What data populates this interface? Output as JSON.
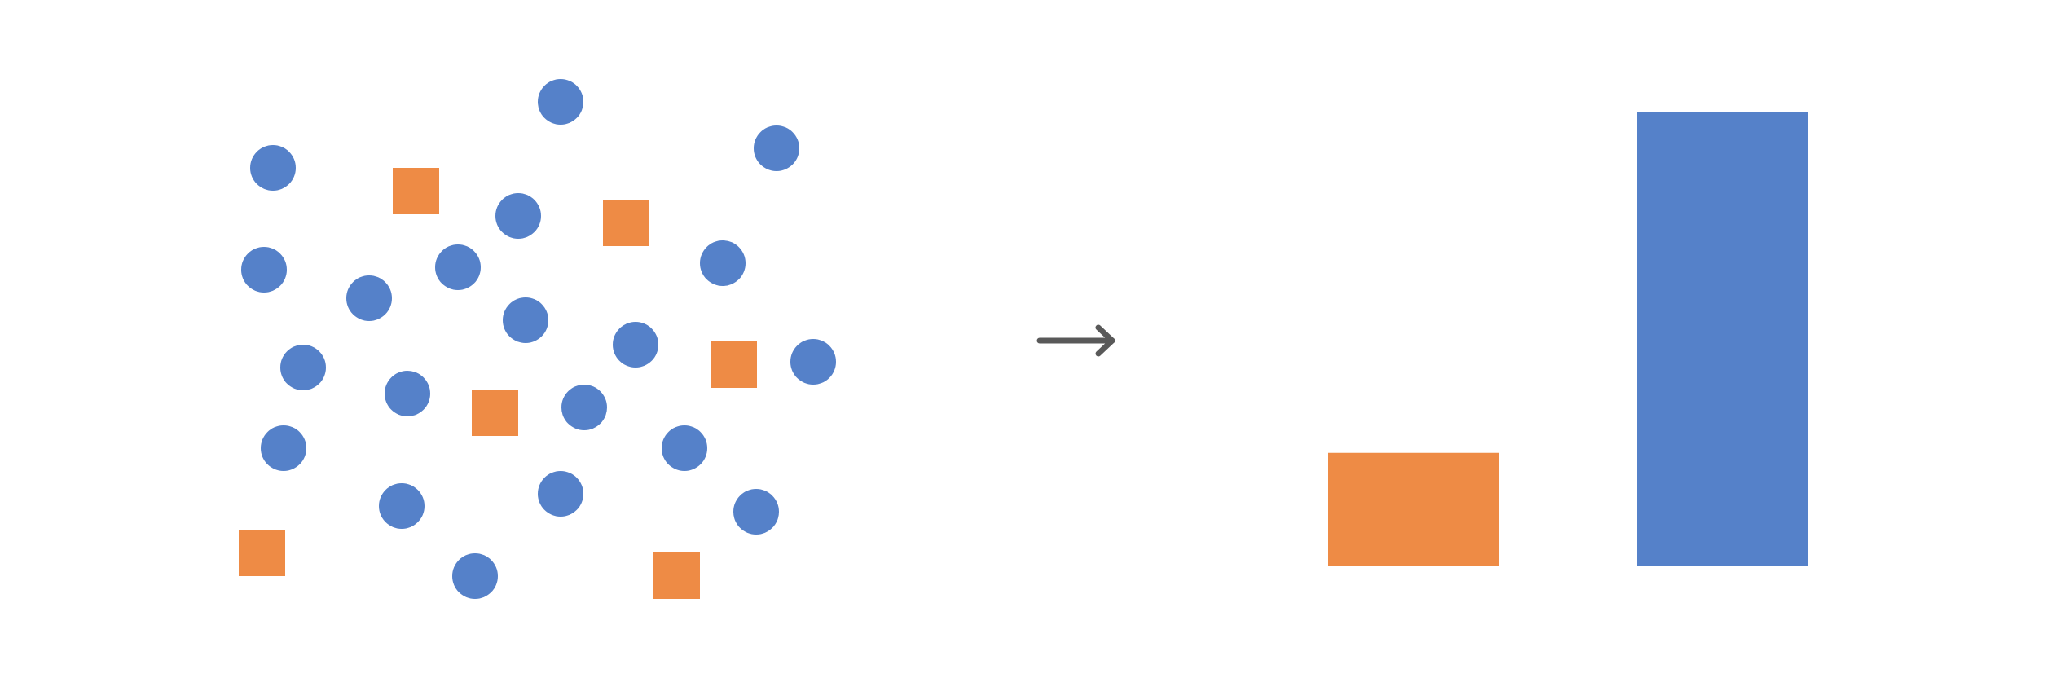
{
  "colors": {
    "background": "#ffffff",
    "circle": "#5581c9",
    "square": "#ee8b45",
    "arrow": "#595959"
  },
  "icons": {
    "arrow": "right-arrow-icon"
  },
  "chart_data": {
    "type": "bar",
    "categories": [
      "",
      ""
    ],
    "series": [
      {
        "values": [
          0.25,
          1.0
        ]
      }
    ],
    "bar_colors": [
      "#ee8b45",
      "#5581c9"
    ],
    "ylim": [
      0,
      1
    ],
    "axes": false,
    "grid": false
  }
}
